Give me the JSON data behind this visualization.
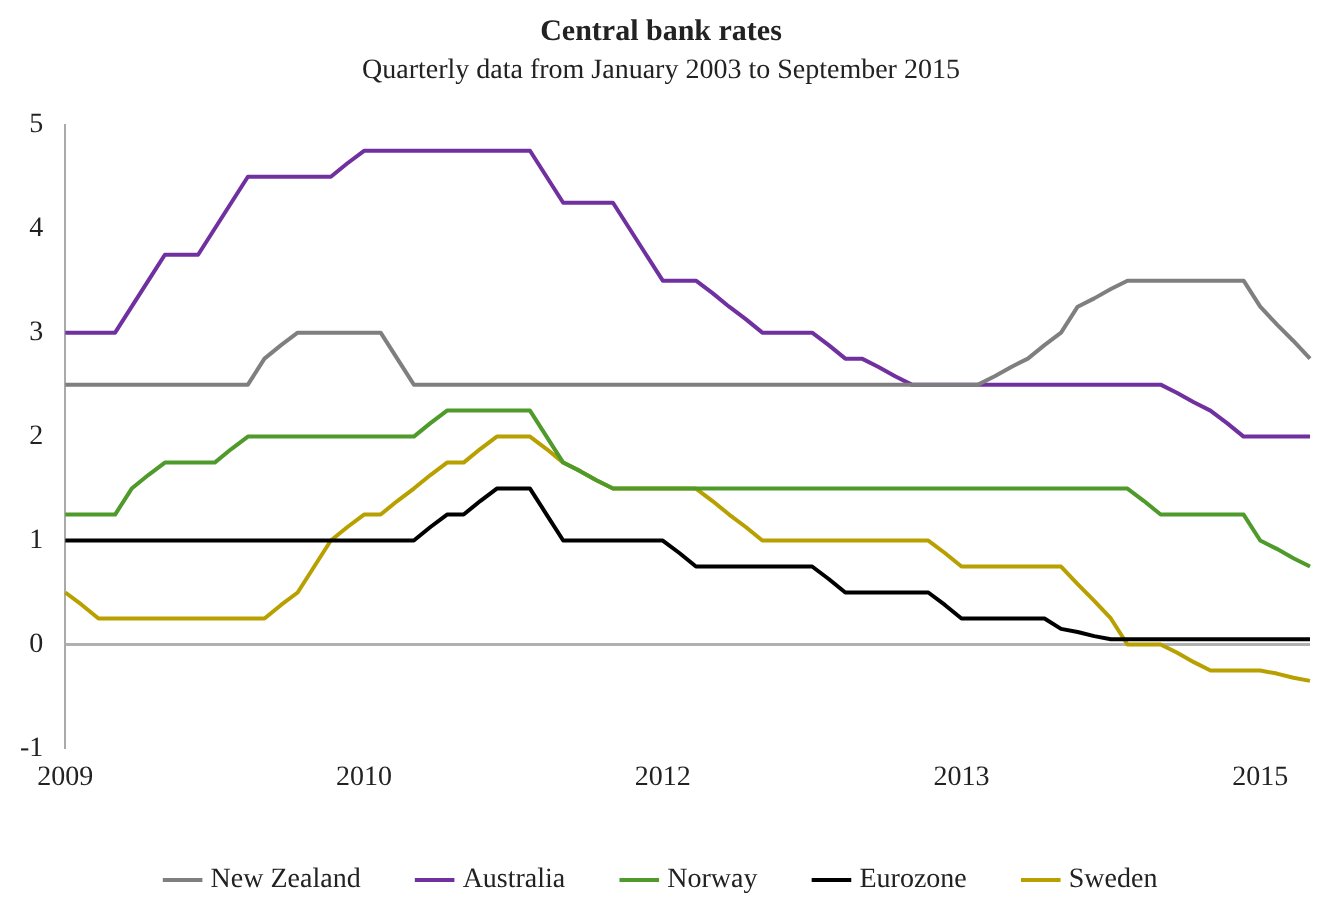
{
  "chart_data": {
    "type": "line",
    "title": "Central bank rates",
    "subtitle": "Quarterly data from January 2003 to September 2015",
    "categories": [
      "2009",
      null,
      null,
      null,
      null,
      null,
      null,
      null,
      null,
      null,
      null,
      null,
      null,
      null,
      null,
      null,
      null,
      null,
      "2010",
      null,
      null,
      null,
      null,
      null,
      null,
      null,
      null,
      null,
      null,
      null,
      null,
      null,
      null,
      null,
      null,
      null,
      "2012",
      null,
      null,
      null,
      null,
      null,
      null,
      null,
      null,
      null,
      null,
      null,
      null,
      null,
      null,
      null,
      null,
      null,
      "2013",
      null,
      null,
      null,
      null,
      null,
      null,
      null,
      null,
      null,
      null,
      null,
      null,
      null,
      null,
      null,
      null,
      null,
      "2015",
      null,
      null,
      null
    ],
    "series": [
      {
        "name": "New Zealand",
        "color": "#7f7f7f",
        "values": [
          2.5,
          2.5,
          2.5,
          2.5,
          2.5,
          2.5,
          2.5,
          2.5,
          2.5,
          2.5,
          2.5,
          2.5,
          2.75,
          2.88,
          3,
          3,
          3,
          3,
          3,
          3,
          2.75,
          2.5,
          2.5,
          2.5,
          2.5,
          2.5,
          2.5,
          2.5,
          2.5,
          2.5,
          2.5,
          2.5,
          2.5,
          2.5,
          2.5,
          2.5,
          2.5,
          2.5,
          2.5,
          2.5,
          2.5,
          2.5,
          2.5,
          2.5,
          2.5,
          2.5,
          2.5,
          2.5,
          2.5,
          2.5,
          2.5,
          2.5,
          2.5,
          2.5,
          2.5,
          2.5,
          2.58,
          2.67,
          2.75,
          2.88,
          3,
          3.25,
          3.33,
          3.42,
          3.5,
          3.5,
          3.5,
          3.5,
          3.5,
          3.5,
          3.5,
          3.5,
          3.25,
          3.08,
          2.92,
          2.75
        ]
      },
      {
        "name": "Australia",
        "color": "#7030a0",
        "values": [
          3,
          3,
          3,
          3,
          3.25,
          3.5,
          3.75,
          3.75,
          3.75,
          4,
          4.25,
          4.5,
          4.5,
          4.5,
          4.5,
          4.5,
          4.5,
          4.63,
          4.75,
          4.75,
          4.75,
          4.75,
          4.75,
          4.75,
          4.75,
          4.75,
          4.75,
          4.75,
          4.75,
          4.5,
          4.25,
          4.25,
          4.25,
          4.25,
          4,
          3.75,
          3.5,
          3.5,
          3.5,
          3.38,
          3.25,
          3.13,
          3,
          3,
          3,
          3,
          2.88,
          2.75,
          2.75,
          2.67,
          2.58,
          2.5,
          2.5,
          2.5,
          2.5,
          2.5,
          2.5,
          2.5,
          2.5,
          2.5,
          2.5,
          2.5,
          2.5,
          2.5,
          2.5,
          2.5,
          2.5,
          2.42,
          2.33,
          2.25,
          2.13,
          2,
          2,
          2,
          2,
          2
        ]
      },
      {
        "name": "Norway",
        "color": "#4e9a2a",
        "values": [
          1.25,
          1.25,
          1.25,
          1.25,
          1.5,
          1.63,
          1.75,
          1.75,
          1.75,
          1.75,
          1.88,
          2,
          2,
          2,
          2,
          2,
          2,
          2,
          2,
          2,
          2,
          2,
          2.13,
          2.25,
          2.25,
          2.25,
          2.25,
          2.25,
          2.25,
          2,
          1.75,
          1.67,
          1.58,
          1.5,
          1.5,
          1.5,
          1.5,
          1.5,
          1.5,
          1.5,
          1.5,
          1.5,
          1.5,
          1.5,
          1.5,
          1.5,
          1.5,
          1.5,
          1.5,
          1.5,
          1.5,
          1.5,
          1.5,
          1.5,
          1.5,
          1.5,
          1.5,
          1.5,
          1.5,
          1.5,
          1.5,
          1.5,
          1.5,
          1.5,
          1.5,
          1.38,
          1.25,
          1.25,
          1.25,
          1.25,
          1.25,
          1.25,
          1,
          0.92,
          0.83,
          0.75
        ]
      },
      {
        "name": "Eurozone",
        "color": "#000000",
        "values": [
          1,
          1,
          1,
          1,
          1,
          1,
          1,
          1,
          1,
          1,
          1,
          1,
          1,
          1,
          1,
          1,
          1,
          1,
          1,
          1,
          1,
          1,
          1.13,
          1.25,
          1.25,
          1.38,
          1.5,
          1.5,
          1.5,
          1.25,
          1,
          1,
          1,
          1,
          1,
          1,
          1,
          0.88,
          0.75,
          0.75,
          0.75,
          0.75,
          0.75,
          0.75,
          0.75,
          0.75,
          0.63,
          0.5,
          0.5,
          0.5,
          0.5,
          0.5,
          0.5,
          0.38,
          0.25,
          0.25,
          0.25,
          0.25,
          0.25,
          0.25,
          0.15,
          0.12,
          0.08,
          0.05,
          0.05,
          0.05,
          0.05,
          0.05,
          0.05,
          0.05,
          0.05,
          0.05,
          0.05,
          0.05,
          0.05,
          0.05
        ]
      },
      {
        "name": "Sweden",
        "color": "#b8a000",
        "values": [
          0.5,
          0.38,
          0.25,
          0.25,
          0.25,
          0.25,
          0.25,
          0.25,
          0.25,
          0.25,
          0.25,
          0.25,
          0.25,
          0.38,
          0.5,
          0.75,
          1,
          1.13,
          1.25,
          1.25,
          1.38,
          1.5,
          1.63,
          1.75,
          1.75,
          1.88,
          2,
          2,
          2,
          1.88,
          1.75,
          1.67,
          1.58,
          1.5,
          1.5,
          1.5,
          1.5,
          1.5,
          1.5,
          1.38,
          1.25,
          1.13,
          1,
          1,
          1,
          1,
          1,
          1,
          1,
          1,
          1,
          1,
          1,
          0.88,
          0.75,
          0.75,
          0.75,
          0.75,
          0.75,
          0.75,
          0.75,
          0.58,
          0.42,
          0.25,
          0,
          0,
          0,
          -0.08,
          -0.17,
          -0.25,
          -0.25,
          -0.25,
          -0.25,
          -0.28,
          -0.32,
          -0.35
        ]
      }
    ],
    "ylim": [
      -1,
      5
    ],
    "yticks": [
      -1,
      0,
      1,
      2,
      3,
      4,
      5
    ],
    "ref_lines": [
      {
        "axis": "y",
        "value": 0,
        "color": "#b0b0b0"
      }
    ],
    "grid": false,
    "legend": "bottom",
    "marker": "none",
    "line_style": "solid"
  }
}
